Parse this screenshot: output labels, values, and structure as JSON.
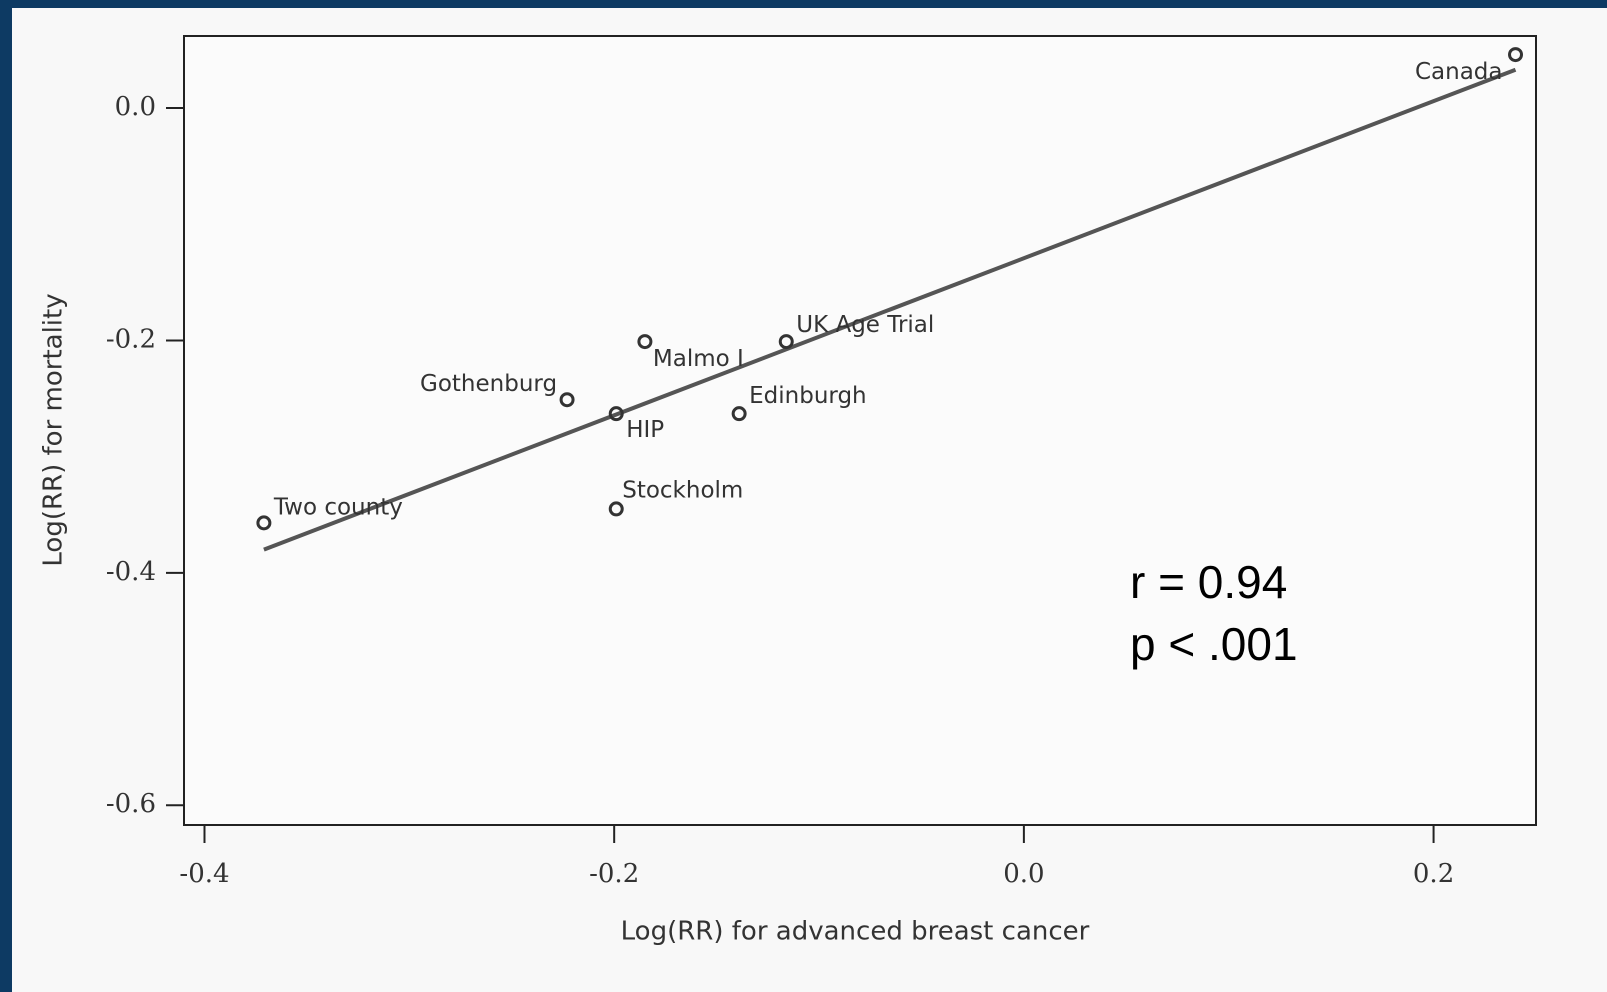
{
  "chart_data": {
    "type": "scatter",
    "xlabel": "Log(RR) for advanced breast cancer",
    "ylabel": "Log(RR) for mortality",
    "x": [
      -0.371,
      -0.199,
      -0.199,
      -0.223,
      -0.185,
      -0.116,
      -0.139,
      0.24
    ],
    "y": [
      -0.357,
      -0.345,
      -0.263,
      -0.251,
      -0.201,
      -0.201,
      -0.263,
      0.046
    ],
    "labels": [
      "Two county",
      "Stockholm",
      "HIP",
      "Gothenburg",
      "Malmo I",
      "UK Age Trial",
      "Edinburgh",
      "Canada"
    ],
    "fit": {
      "x": [
        -0.371,
        0.24
      ],
      "y": [
        -0.38,
        0.033
      ]
    },
    "xlim": [
      -0.41,
      0.25
    ],
    "ylim": [
      -0.617,
      0.062
    ],
    "xticks": [
      -0.4,
      -0.2,
      {
        "value": 0,
        "label": "0.0"
      },
      0.2
    ],
    "yticks": [
      {
        "value": 0,
        "label": "0.0"
      },
      -0.2,
      -0.4,
      -0.6
    ],
    "annotations": [
      "r = 0.94",
      "p < .001"
    ]
  }
}
